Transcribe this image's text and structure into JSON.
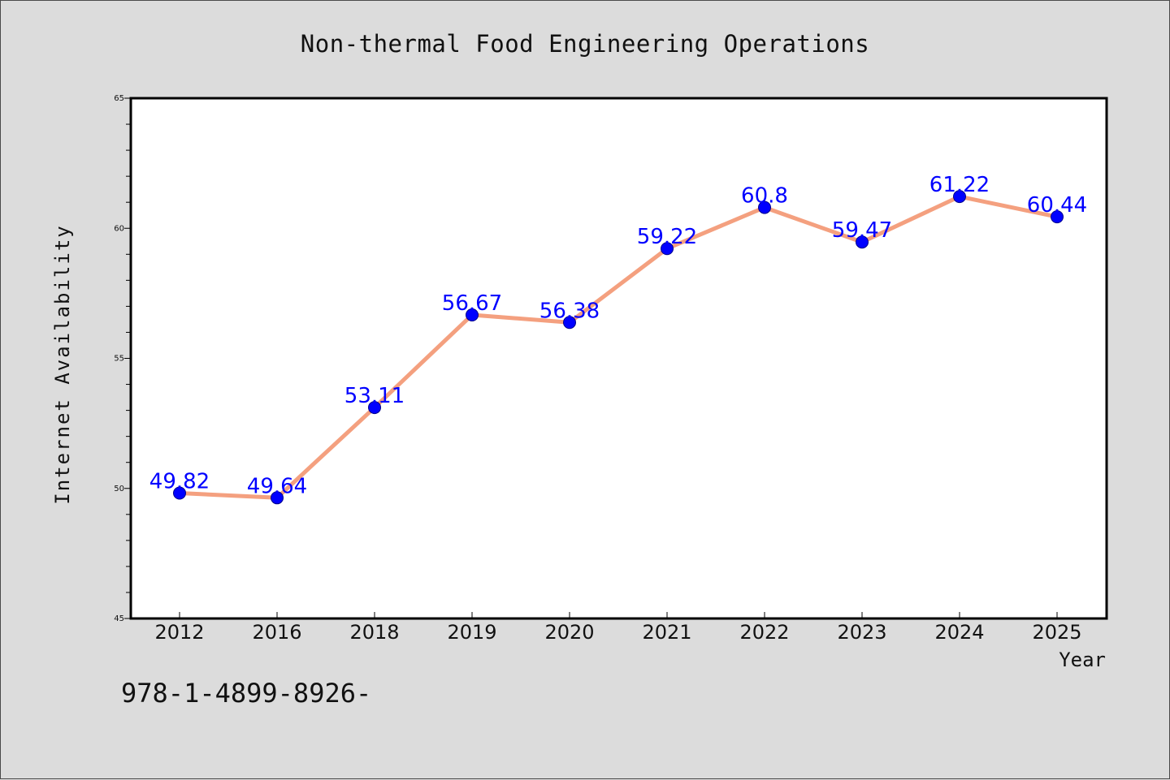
{
  "chart_data": {
    "type": "line",
    "title": "Non-thermal Food Engineering Operations",
    "xlabel": "Year",
    "ylabel": "Internet Availability",
    "categories": [
      "2012",
      "2016",
      "2018",
      "2019",
      "2020",
      "2021",
      "2022",
      "2023",
      "2024",
      "2025"
    ],
    "values": [
      49.82,
      49.64,
      53.11,
      56.67,
      56.38,
      59.22,
      60.8,
      59.47,
      61.22,
      60.44
    ],
    "data_labels": [
      "49.82",
      "49.64",
      "53.11",
      "56.67",
      "56.38",
      "59.22",
      "60.8",
      "59.47",
      "61.22",
      "60.44"
    ],
    "ylim": [
      45,
      65
    ],
    "yticks": [
      "45",
      "50",
      "55",
      "60",
      "65"
    ],
    "grid": false,
    "line_color": "#f4a07f",
    "marker_color": "#0000ff",
    "label_color": "#0000ff",
    "plot_background": "#ffffff",
    "figure_background": "#dcdcdc"
  },
  "footer_text": "978-1-4899-8926-"
}
